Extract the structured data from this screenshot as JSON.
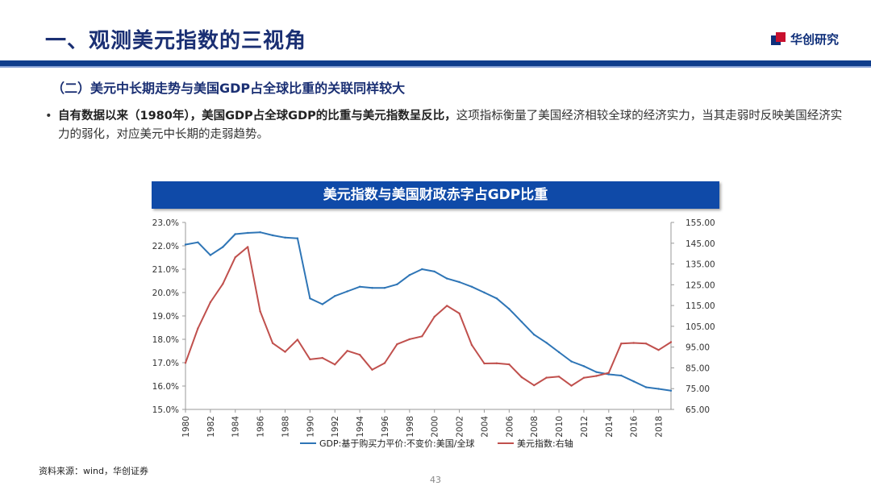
{
  "header": {
    "title": "一、观测美元指数的三视角",
    "brand": "华创研究"
  },
  "section": {
    "heading": "（二）美元中长期走势与美国GDP占全球比重的关联同样较大"
  },
  "bullet": {
    "marker": "•",
    "bold_text": "自有数据以来（1980年），美国GDP占全球GDP的比重与美元指数呈反比，",
    "normal_text": "这项指标衡量了美国经济相较全球的经济实力，当其走弱时反映美国经济实力的弱化，对应美元中长期的走弱趋势。"
  },
  "chart_data": {
    "type": "line",
    "title": "美元指数与美国财政赤字占GDP比重",
    "x": [
      1980,
      1981,
      1982,
      1983,
      1984,
      1985,
      1986,
      1987,
      1988,
      1989,
      1990,
      1991,
      1992,
      1993,
      1994,
      1995,
      1996,
      1997,
      1998,
      1999,
      2000,
      2001,
      2002,
      2003,
      2004,
      2005,
      2006,
      2007,
      2008,
      2009,
      2010,
      2011,
      2012,
      2013,
      2014,
      2015,
      2016,
      2017,
      2018,
      2019
    ],
    "x_tick_labels": [
      "1980",
      "1982",
      "1984",
      "1986",
      "1988",
      "1990",
      "1992",
      "1994",
      "1996",
      "1998",
      "2000",
      "2002",
      "2004",
      "2006",
      "2008",
      "2010",
      "2012",
      "2014",
      "2016",
      "2018"
    ],
    "series": [
      {
        "name": "GDP:基于购买力平价:不变价:美国/全球",
        "axis": "left",
        "color": "#2e75b6",
        "values": [
          22.05,
          22.15,
          21.6,
          21.95,
          22.5,
          22.55,
          22.58,
          22.45,
          22.35,
          22.32,
          19.75,
          19.5,
          19.85,
          20.05,
          20.25,
          20.2,
          20.2,
          20.35,
          20.75,
          21.0,
          20.9,
          20.6,
          20.45,
          20.25,
          20.0,
          19.75,
          19.3,
          18.75,
          18.2,
          17.85,
          17.45,
          17.05,
          16.85,
          16.6,
          16.5,
          16.45,
          16.2,
          15.95,
          15.88,
          15.8
        ]
      },
      {
        "name": "美元指数:右轴",
        "axis": "right",
        "color": "#c0504d",
        "values": [
          87.4,
          104.0,
          116.6,
          125.4,
          138.2,
          143.2,
          112.2,
          96.9,
          92.7,
          98.6,
          89.1,
          89.8,
          86.6,
          93.2,
          91.3,
          84.1,
          87.3,
          96.4,
          98.8,
          100.2,
          109.6,
          114.9,
          111.2,
          96.0,
          87.1,
          87.2,
          86.7,
          80.5,
          76.6,
          80.3,
          80.8,
          76.4,
          80.2,
          81.1,
          82.6,
          96.7,
          97.0,
          96.7,
          93.6,
          97.4
        ]
      }
    ],
    "y_left": {
      "min": 15.0,
      "max": 23.0,
      "step": 1.0,
      "tick_labels": [
        "15.0%",
        "16.0%",
        "17.0%",
        "18.0%",
        "19.0%",
        "20.0%",
        "21.0%",
        "22.0%",
        "23.0%"
      ]
    },
    "y_right": {
      "min": 65.0,
      "max": 155.0,
      "step": 10.0,
      "tick_labels": [
        "65.00",
        "75.00",
        "85.00",
        "95.00",
        "105.00",
        "115.00",
        "125.00",
        "135.00",
        "145.00",
        "155.00"
      ]
    },
    "legend_position": "bottom",
    "grid": false
  },
  "footer": {
    "source": "资料来源：wind，华创证券",
    "page_number": "43"
  }
}
